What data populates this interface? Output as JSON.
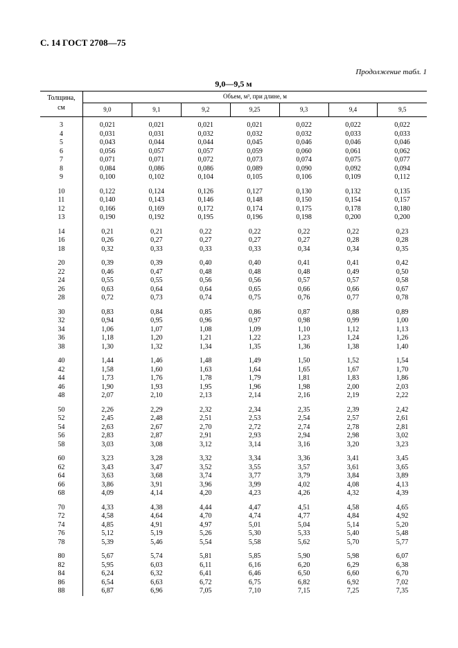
{
  "header": "С. 14 ГОСТ 2708—75",
  "continuation": "Продолжение табл. 1",
  "range_title": "9,0—9,5 м",
  "table": {
    "first_col_label_top": "Толщина,",
    "first_col_label_bot": "см",
    "span_label": "Объем, м³, при длине, м",
    "columns": [
      "9,0",
      "9,1",
      "9,2",
      "9,25",
      "9,3",
      "9,4",
      "9,5"
    ],
    "groups": [
      {
        "rows": [
          {
            "t": "3",
            "v": [
              "0,021",
              "0,021",
              "0,021",
              "0,021",
              "0,022",
              "0,022",
              "0,022"
            ]
          },
          {
            "t": "4",
            "v": [
              "0,031",
              "0,031",
              "0,032",
              "0,032",
              "0,032",
              "0,033",
              "0,033"
            ]
          },
          {
            "t": "5",
            "v": [
              "0,043",
              "0,044",
              "0,044",
              "0,045",
              "0,046",
              "0,046",
              "0,046"
            ]
          },
          {
            "t": "6",
            "v": [
              "0,056",
              "0,057",
              "0,057",
              "0,059",
              "0,060",
              "0,061",
              "0,062"
            ]
          },
          {
            "t": "7",
            "v": [
              "0,071",
              "0,071",
              "0,072",
              "0,073",
              "0,074",
              "0,075",
              "0,077"
            ]
          },
          {
            "t": "8",
            "v": [
              "0,084",
              "0,086",
              "0,086",
              "0,089",
              "0,090",
              "0,092",
              "0,094"
            ]
          },
          {
            "t": "9",
            "v": [
              "0,100",
              "0,102",
              "0,104",
              "0,105",
              "0,106",
              "0,109",
              "0,112"
            ]
          }
        ]
      },
      {
        "rows": [
          {
            "t": "10",
            "v": [
              "0,122",
              "0,124",
              "0,126",
              "0,127",
              "0,130",
              "0,132",
              "0,135"
            ]
          },
          {
            "t": "11",
            "v": [
              "0,140",
              "0,143",
              "0,146",
              "0,148",
              "0,150",
              "0,154",
              "0,157"
            ]
          },
          {
            "t": "12",
            "v": [
              "0,166",
              "0,169",
              "0,172",
              "0,174",
              "0,175",
              "0,178",
              "0,180"
            ]
          },
          {
            "t": "13",
            "v": [
              "0,190",
              "0,192",
              "0,195",
              "0,196",
              "0,198",
              "0,200",
              "0,200"
            ]
          }
        ]
      },
      {
        "rows": [
          {
            "t": "14",
            "v": [
              "0,21",
              "0,21",
              "0,22",
              "0,22",
              "0,22",
              "0,22",
              "0,23"
            ]
          },
          {
            "t": "16",
            "v": [
              "0,26",
              "0,27",
              "0,27",
              "0,27",
              "0,27",
              "0,28",
              "0,28"
            ]
          },
          {
            "t": "18",
            "v": [
              "0,32",
              "0,33",
              "0,33",
              "0,33",
              "0,34",
              "0,34",
              "0,35"
            ]
          }
        ]
      },
      {
        "rows": [
          {
            "t": "20",
            "v": [
              "0,39",
              "0,39",
              "0,40",
              "0,40",
              "0,41",
              "0,41",
              "0,42"
            ]
          },
          {
            "t": "22",
            "v": [
              "0,46",
              "0,47",
              "0,48",
              "0,48",
              "0,48",
              "0,49",
              "0,50"
            ]
          },
          {
            "t": "24",
            "v": [
              "0,55",
              "0,55",
              "0,56",
              "0,56",
              "0,57",
              "0,57",
              "0,58"
            ]
          },
          {
            "t": "26",
            "v": [
              "0,63",
              "0,64",
              "0,64",
              "0,65",
              "0,66",
              "0,66",
              "0,67"
            ]
          },
          {
            "t": "28",
            "v": [
              "0,72",
              "0,73",
              "0,74",
              "0,75",
              "0,76",
              "0,77",
              "0,78"
            ]
          }
        ]
      },
      {
        "rows": [
          {
            "t": "30",
            "v": [
              "0,83",
              "0,84",
              "0,85",
              "0,86",
              "0,87",
              "0,88",
              "0,89"
            ]
          },
          {
            "t": "32",
            "v": [
              "0,94",
              "0,95",
              "0,96",
              "0,97",
              "0,98",
              "0,99",
              "1,00"
            ]
          },
          {
            "t": "34",
            "v": [
              "1,06",
              "1,07",
              "1,08",
              "1,09",
              "1,10",
              "1,12",
              "1,13"
            ]
          },
          {
            "t": "36",
            "v": [
              "1,18",
              "1,20",
              "1,21",
              "1,22",
              "1,23",
              "1,24",
              "1,26"
            ]
          },
          {
            "t": "38",
            "v": [
              "1,30",
              "1,32",
              "1,34",
              "1,35",
              "1,36",
              "1,38",
              "1,40"
            ]
          }
        ]
      },
      {
        "rows": [
          {
            "t": "40",
            "v": [
              "1,44",
              "1,46",
              "1,48",
              "1,49",
              "1,50",
              "1,52",
              "1,54"
            ]
          },
          {
            "t": "42",
            "v": [
              "1,58",
              "1,60",
              "1,63",
              "1,64",
              "1,65",
              "1,67",
              "1,70"
            ]
          },
          {
            "t": "44",
            "v": [
              "1,73",
              "1,76",
              "1,78",
              "1,79",
              "1,81",
              "1,83",
              "1,86"
            ]
          },
          {
            "t": "46",
            "v": [
              "1,90",
              "1,93",
              "1,95",
              "1,96",
              "1,98",
              "2,00",
              "2,03"
            ]
          },
          {
            "t": "48",
            "v": [
              "2,07",
              "2,10",
              "2,13",
              "2,14",
              "2,16",
              "2,19",
              "2,22"
            ]
          }
        ]
      },
      {
        "rows": [
          {
            "t": "50",
            "v": [
              "2,26",
              "2,29",
              "2,32",
              "2,34",
              "2,35",
              "2,39",
              "2,42"
            ]
          },
          {
            "t": "52",
            "v": [
              "2,45",
              "2,48",
              "2,51",
              "2,53",
              "2,54",
              "2,57",
              "2,61"
            ]
          },
          {
            "t": "54",
            "v": [
              "2,63",
              "2,67",
              "2,70",
              "2,72",
              "2,74",
              "2,78",
              "2,81"
            ]
          },
          {
            "t": "56",
            "v": [
              "2,83",
              "2,87",
              "2,91",
              "2,93",
              "2,94",
              "2,98",
              "3,02"
            ]
          },
          {
            "t": "58",
            "v": [
              "3,03",
              "3,08",
              "3,12",
              "3,14",
              "3,16",
              "3,20",
              "3,23"
            ]
          }
        ]
      },
      {
        "rows": [
          {
            "t": "60",
            "v": [
              "3,23",
              "3,28",
              "3,32",
              "3,34",
              "3,36",
              "3,41",
              "3,45"
            ]
          },
          {
            "t": "62",
            "v": [
              "3,43",
              "3,47",
              "3,52",
              "3,55",
              "3,57",
              "3,61",
              "3,65"
            ]
          },
          {
            "t": "64",
            "v": [
              "3,63",
              "3,68",
              "3,74",
              "3,77",
              "3,79",
              "3,84",
              "3,89"
            ]
          },
          {
            "t": "66",
            "v": [
              "3,86",
              "3,91",
              "3,96",
              "3,99",
              "4,02",
              "4,08",
              "4,13"
            ]
          },
          {
            "t": "68",
            "v": [
              "4,09",
              "4,14",
              "4,20",
              "4,23",
              "4,26",
              "4,32",
              "4,39"
            ]
          }
        ]
      },
      {
        "rows": [
          {
            "t": "70",
            "v": [
              "4,33",
              "4,38",
              "4,44",
              "4,47",
              "4,51",
              "4,58",
              "4,65"
            ]
          },
          {
            "t": "72",
            "v": [
              "4,58",
              "4,64",
              "4,70",
              "4,74",
              "4,77",
              "4,84",
              "4,92"
            ]
          },
          {
            "t": "74",
            "v": [
              "4,85",
              "4,91",
              "4,97",
              "5,01",
              "5,04",
              "5,14",
              "5,20"
            ]
          },
          {
            "t": "76",
            "v": [
              "5,12",
              "5,19",
              "5,26",
              "5,30",
              "5,33",
              "5,40",
              "5,48"
            ]
          },
          {
            "t": "78",
            "v": [
              "5,39",
              "5,46",
              "5,54",
              "5,58",
              "5,62",
              "5,70",
              "5,77"
            ]
          }
        ]
      },
      {
        "rows": [
          {
            "t": "80",
            "v": [
              "5,67",
              "5,74",
              "5,81",
              "5,85",
              "5,90",
              "5,98",
              "6,07"
            ]
          },
          {
            "t": "82",
            "v": [
              "5,95",
              "6,03",
              "6,11",
              "6,16",
              "6,20",
              "6,29",
              "6,38"
            ]
          },
          {
            "t": "84",
            "v": [
              "6,24",
              "6,32",
              "6,41",
              "6,46",
              "6,50",
              "6,60",
              "6,70"
            ]
          },
          {
            "t": "86",
            "v": [
              "6,54",
              "6,63",
              "6,72",
              "6,75",
              "6,82",
              "6,92",
              "7,02"
            ]
          },
          {
            "t": "88",
            "v": [
              "6,87",
              "6,96",
              "7,05",
              "7,10",
              "7,15",
              "7,25",
              "7,35"
            ]
          }
        ]
      }
    ]
  }
}
